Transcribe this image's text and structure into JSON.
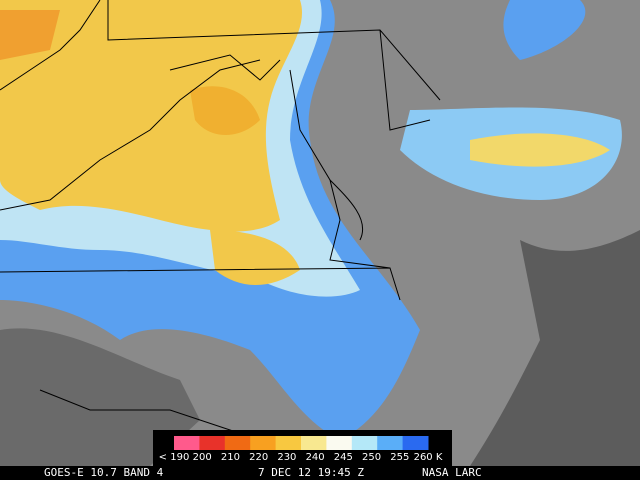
{
  "legend": {
    "labels": [
      "< 190",
      "200",
      "210",
      "220",
      "230",
      "240",
      "245",
      "250",
      "255",
      "260 K"
    ],
    "colors": [
      "#ff5a8c",
      "#e8322a",
      "#f06a14",
      "#f8a020",
      "#f8c840",
      "#f8e890",
      "#fafaf0",
      "#b4e8f8",
      "#5aaef8",
      "#2a6af0"
    ]
  },
  "caption": {
    "left": "GOES-E 10.7 BAND 4",
    "center": "7 DEC 12 19:45 Z",
    "right": "NASA LARC"
  }
}
